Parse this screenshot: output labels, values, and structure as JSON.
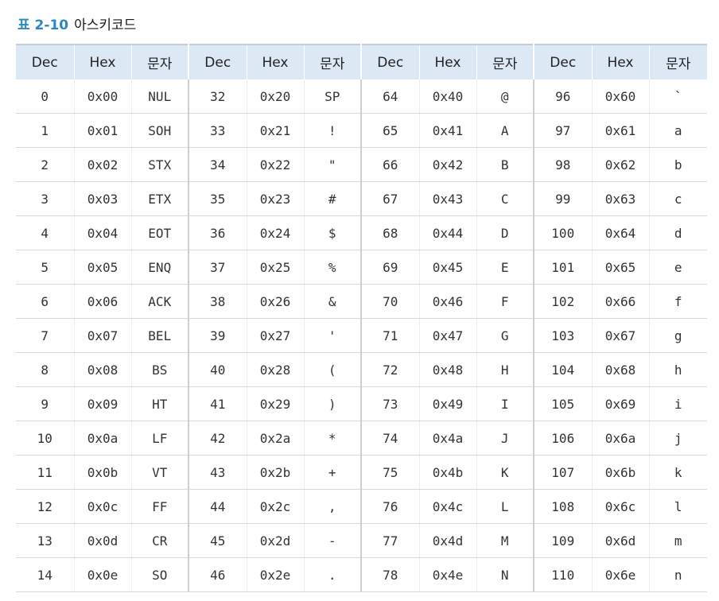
{
  "caption": {
    "label": "표 2-10",
    "title": "아스키코드"
  },
  "table": {
    "headers": [
      "Dec",
      "Hex",
      "문자",
      "Dec",
      "Hex",
      "문자",
      "Dec",
      "Hex",
      "문자",
      "Dec",
      "Hex",
      "문자"
    ],
    "rows": [
      [
        "0",
        "0x00",
        "NUL",
        "32",
        "0x20",
        "SP",
        "64",
        "0x40",
        "@",
        "96",
        "0x60",
        "`"
      ],
      [
        "1",
        "0x01",
        "SOH",
        "33",
        "0x21",
        "!",
        "65",
        "0x41",
        "A",
        "97",
        "0x61",
        "a"
      ],
      [
        "2",
        "0x02",
        "STX",
        "34",
        "0x22",
        "\"",
        "66",
        "0x42",
        "B",
        "98",
        "0x62",
        "b"
      ],
      [
        "3",
        "0x03",
        "ETX",
        "35",
        "0x23",
        "#",
        "67",
        "0x43",
        "C",
        "99",
        "0x63",
        "c"
      ],
      [
        "4",
        "0x04",
        "EOT",
        "36",
        "0x24",
        "$",
        "68",
        "0x44",
        "D",
        "100",
        "0x64",
        "d"
      ],
      [
        "5",
        "0x05",
        "ENQ",
        "37",
        "0x25",
        "%",
        "69",
        "0x45",
        "E",
        "101",
        "0x65",
        "e"
      ],
      [
        "6",
        "0x06",
        "ACK",
        "38",
        "0x26",
        "&",
        "70",
        "0x46",
        "F",
        "102",
        "0x66",
        "f"
      ],
      [
        "7",
        "0x07",
        "BEL",
        "39",
        "0x27",
        "'",
        "71",
        "0x47",
        "G",
        "103",
        "0x67",
        "g"
      ],
      [
        "8",
        "0x08",
        "BS",
        "40",
        "0x28",
        "(",
        "72",
        "0x48",
        "H",
        "104",
        "0x68",
        "h"
      ],
      [
        "9",
        "0x09",
        "HT",
        "41",
        "0x29",
        ")",
        "73",
        "0x49",
        "I",
        "105",
        "0x69",
        "i"
      ],
      [
        "10",
        "0x0a",
        "LF",
        "42",
        "0x2a",
        "*",
        "74",
        "0x4a",
        "J",
        "106",
        "0x6a",
        "j"
      ],
      [
        "11",
        "0x0b",
        "VT",
        "43",
        "0x2b",
        "+",
        "75",
        "0x4b",
        "K",
        "107",
        "0x6b",
        "k"
      ],
      [
        "12",
        "0x0c",
        "FF",
        "44",
        "0x2c",
        ",",
        "76",
        "0x4c",
        "L",
        "108",
        "0x6c",
        "l"
      ],
      [
        "13",
        "0x0d",
        "CR",
        "45",
        "0x2d",
        "-",
        "77",
        "0x4d",
        "M",
        "109",
        "0x6d",
        "m"
      ],
      [
        "14",
        "0x0e",
        "SO",
        "46",
        "0x2e",
        ".",
        "78",
        "0x4e",
        "N",
        "110",
        "0x6e",
        "n"
      ]
    ]
  },
  "colors": {
    "caption_label": "#2a86c4",
    "header_background": "#dce8f4"
  }
}
